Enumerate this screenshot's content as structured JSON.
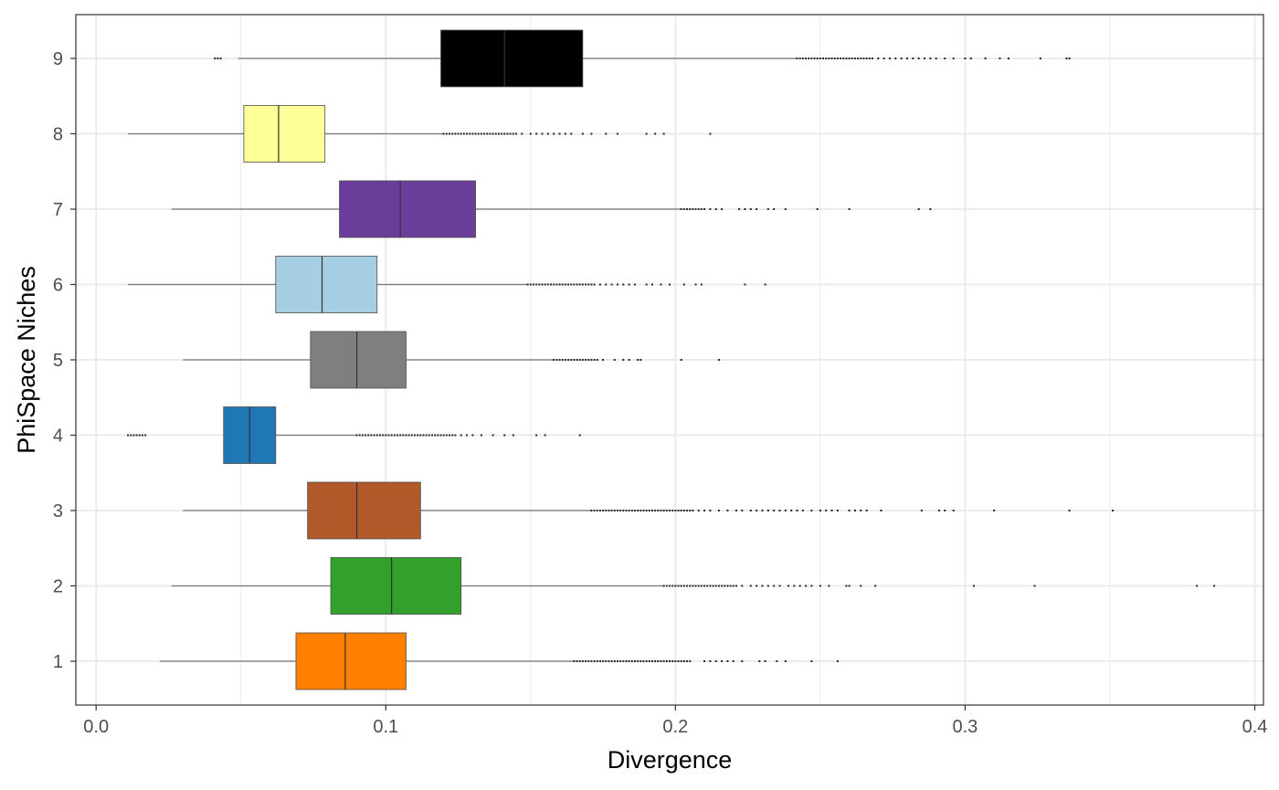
{
  "chart_data": {
    "type": "boxplot",
    "orientation": "horizontal",
    "xlabel": "Divergence",
    "ylabel": "PhiSpace Niches",
    "xlim": [
      -0.007,
      0.403
    ],
    "x_ticks": [
      0.0,
      0.1,
      0.2,
      0.3,
      0.4
    ],
    "x_tick_labels": [
      "0.0",
      "0.1",
      "0.2",
      "0.3",
      "0.4"
    ],
    "categories": [
      "1",
      "2",
      "3",
      "4",
      "5",
      "6",
      "7",
      "8",
      "9"
    ],
    "grid": true,
    "legend": "none",
    "series": [
      {
        "category": "1",
        "color": "#FF7F00",
        "whisker_low": 0.022,
        "q1": 0.069,
        "median": 0.086,
        "q3": 0.107,
        "whisker_high": 0.165,
        "outliers": [
          0.165,
          0.166,
          0.167,
          0.168,
          0.169,
          0.17,
          0.171,
          0.172,
          0.173,
          0.174,
          0.175,
          0.176,
          0.177,
          0.178,
          0.179,
          0.18,
          0.181,
          0.182,
          0.183,
          0.184,
          0.185,
          0.186,
          0.187,
          0.188,
          0.189,
          0.19,
          0.191,
          0.192,
          0.193,
          0.194,
          0.195,
          0.196,
          0.197,
          0.198,
          0.199,
          0.2,
          0.201,
          0.202,
          0.203,
          0.204,
          0.205,
          0.21,
          0.212,
          0.214,
          0.216,
          0.218,
          0.22,
          0.223,
          0.229,
          0.231,
          0.235,
          0.238,
          0.247,
          0.256
        ]
      },
      {
        "category": "2",
        "color": "#33A02C",
        "whisker_low": 0.026,
        "q1": 0.081,
        "median": 0.102,
        "q3": 0.126,
        "whisker_high": 0.196,
        "outliers": [
          0.196,
          0.197,
          0.198,
          0.199,
          0.2,
          0.201,
          0.202,
          0.203,
          0.204,
          0.205,
          0.206,
          0.207,
          0.208,
          0.209,
          0.21,
          0.211,
          0.212,
          0.213,
          0.214,
          0.215,
          0.216,
          0.217,
          0.218,
          0.219,
          0.22,
          0.221,
          0.223,
          0.226,
          0.228,
          0.23,
          0.232,
          0.234,
          0.236,
          0.239,
          0.241,
          0.243,
          0.245,
          0.247,
          0.25,
          0.253,
          0.259,
          0.26,
          0.264,
          0.269,
          0.303,
          0.324,
          0.38,
          0.386
        ]
      },
      {
        "category": "3",
        "color": "#B15928",
        "whisker_low": 0.03,
        "q1": 0.073,
        "median": 0.09,
        "q3": 0.112,
        "whisker_high": 0.171,
        "outliers": [
          0.171,
          0.172,
          0.173,
          0.174,
          0.175,
          0.176,
          0.177,
          0.178,
          0.179,
          0.18,
          0.181,
          0.182,
          0.183,
          0.184,
          0.185,
          0.186,
          0.187,
          0.188,
          0.189,
          0.19,
          0.191,
          0.192,
          0.193,
          0.194,
          0.195,
          0.196,
          0.197,
          0.198,
          0.199,
          0.2,
          0.201,
          0.202,
          0.203,
          0.204,
          0.205,
          0.206,
          0.208,
          0.21,
          0.212,
          0.215,
          0.218,
          0.221,
          0.223,
          0.226,
          0.228,
          0.23,
          0.232,
          0.234,
          0.236,
          0.238,
          0.24,
          0.242,
          0.244,
          0.247,
          0.25,
          0.252,
          0.254,
          0.256,
          0.26,
          0.262,
          0.264,
          0.266,
          0.271,
          0.285,
          0.291,
          0.293,
          0.296,
          0.31,
          0.336,
          0.351
        ]
      },
      {
        "category": "4",
        "color": "#1F78B4",
        "whisker_low": 0.044,
        "q1": 0.044,
        "median": 0.053,
        "q3": 0.062,
        "whisker_high": 0.09,
        "outliers": [
          0.011,
          0.012,
          0.013,
          0.014,
          0.015,
          0.016,
          0.017,
          0.09,
          0.091,
          0.092,
          0.093,
          0.094,
          0.095,
          0.096,
          0.097,
          0.098,
          0.099,
          0.1,
          0.101,
          0.102,
          0.103,
          0.104,
          0.105,
          0.106,
          0.107,
          0.108,
          0.109,
          0.11,
          0.111,
          0.112,
          0.113,
          0.114,
          0.115,
          0.116,
          0.117,
          0.118,
          0.119,
          0.12,
          0.121,
          0.122,
          0.123,
          0.124,
          0.126,
          0.128,
          0.13,
          0.133,
          0.137,
          0.141,
          0.144,
          0.152,
          0.155,
          0.167
        ]
      },
      {
        "category": "5",
        "color": "#7F7F7F",
        "whisker_low": 0.03,
        "q1": 0.074,
        "median": 0.09,
        "q3": 0.107,
        "whisker_high": 0.158,
        "outliers": [
          0.158,
          0.159,
          0.16,
          0.161,
          0.162,
          0.163,
          0.164,
          0.165,
          0.166,
          0.167,
          0.168,
          0.169,
          0.17,
          0.171,
          0.172,
          0.173,
          0.175,
          0.179,
          0.182,
          0.184,
          0.187,
          0.188,
          0.202,
          0.215
        ]
      },
      {
        "category": "6",
        "color": "#A6CEE3",
        "whisker_low": 0.011,
        "q1": 0.062,
        "median": 0.078,
        "q3": 0.097,
        "whisker_high": 0.149,
        "outliers": [
          0.149,
          0.15,
          0.151,
          0.152,
          0.153,
          0.154,
          0.155,
          0.156,
          0.157,
          0.158,
          0.159,
          0.16,
          0.161,
          0.162,
          0.163,
          0.164,
          0.165,
          0.166,
          0.167,
          0.168,
          0.169,
          0.17,
          0.171,
          0.172,
          0.174,
          0.176,
          0.178,
          0.18,
          0.182,
          0.184,
          0.186,
          0.19,
          0.192,
          0.195,
          0.198,
          0.203,
          0.207,
          0.209,
          0.224,
          0.231
        ]
      },
      {
        "category": "7",
        "color": "#6A3D9A",
        "whisker_low": 0.026,
        "q1": 0.084,
        "median": 0.105,
        "q3": 0.131,
        "whisker_high": 0.202,
        "outliers": [
          0.202,
          0.203,
          0.204,
          0.205,
          0.206,
          0.207,
          0.208,
          0.209,
          0.21,
          0.212,
          0.214,
          0.216,
          0.222,
          0.224,
          0.226,
          0.228,
          0.232,
          0.234,
          0.238,
          0.249,
          0.26,
          0.284,
          0.288
        ]
      },
      {
        "category": "8",
        "color": "#FFFF99",
        "whisker_low": 0.011,
        "q1": 0.051,
        "median": 0.063,
        "q3": 0.079,
        "whisker_high": 0.12,
        "outliers": [
          0.12,
          0.121,
          0.122,
          0.123,
          0.124,
          0.125,
          0.126,
          0.127,
          0.128,
          0.129,
          0.13,
          0.131,
          0.132,
          0.133,
          0.134,
          0.135,
          0.136,
          0.137,
          0.138,
          0.139,
          0.14,
          0.141,
          0.142,
          0.143,
          0.144,
          0.145,
          0.147,
          0.15,
          0.152,
          0.154,
          0.156,
          0.158,
          0.16,
          0.162,
          0.164,
          0.168,
          0.171,
          0.176,
          0.18,
          0.19,
          0.193,
          0.196,
          0.212
        ]
      },
      {
        "category": "9",
        "color": "#000000",
        "whisker_low": 0.049,
        "q1": 0.119,
        "median": 0.141,
        "q3": 0.168,
        "whisker_high": 0.242,
        "outliers": [
          0.041,
          0.042,
          0.043,
          0.242,
          0.243,
          0.244,
          0.245,
          0.246,
          0.247,
          0.248,
          0.249,
          0.25,
          0.251,
          0.252,
          0.253,
          0.254,
          0.255,
          0.256,
          0.257,
          0.258,
          0.259,
          0.26,
          0.261,
          0.262,
          0.263,
          0.264,
          0.265,
          0.266,
          0.267,
          0.268,
          0.27,
          0.272,
          0.274,
          0.276,
          0.278,
          0.28,
          0.282,
          0.284,
          0.286,
          0.288,
          0.29,
          0.293,
          0.296,
          0.3,
          0.302,
          0.307,
          0.312,
          0.315,
          0.326,
          0.335,
          0.336
        ]
      }
    ]
  }
}
